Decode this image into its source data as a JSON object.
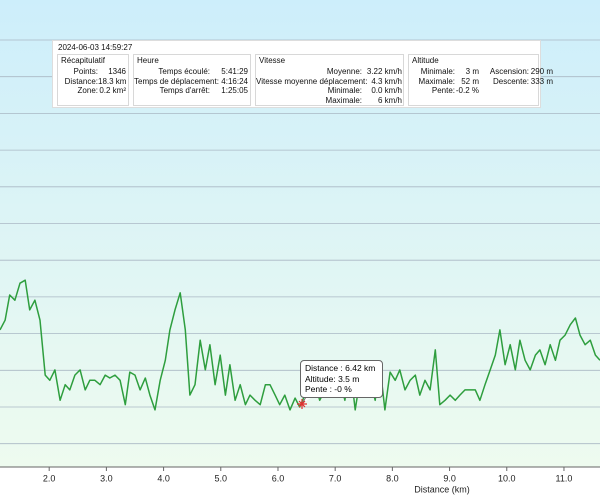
{
  "summary": {
    "timestamp": "2024-06-03 14:59:27",
    "sections": [
      {
        "title": "Récapitulatif",
        "columns": [
          [
            [
              "Points:",
              "1346"
            ],
            [
              "Distance:",
              "18.3 km"
            ],
            [
              "Zone:",
              "0.2 km²"
            ]
          ]
        ]
      },
      {
        "title": "Heure",
        "columns": [
          [
            [
              "Temps écoulé:",
              "5:41:29"
            ],
            [
              "Temps de déplacement:",
              "4:16:24"
            ],
            [
              "Temps d'arrêt:",
              "1:25:05"
            ]
          ]
        ]
      },
      {
        "title": "Vitesse",
        "columns": [
          [
            [
              "Moyenne:",
              "3.22 km/h"
            ],
            [
              "Vitesse moyenne déplacement:",
              "4.3 km/h"
            ],
            [
              "Minimale:",
              "0.0 km/h"
            ],
            [
              "Maximale:",
              "6 km/h"
            ]
          ]
        ]
      },
      {
        "title": "Altitude",
        "columns": [
          [
            [
              "Minimale:",
              "3 m"
            ],
            [
              "Maximale:",
              "52 m"
            ],
            [
              "Pente:",
              "-0.2 %"
            ]
          ],
          [
            [
              "Ascension:",
              "290 m"
            ],
            [
              "Descente:",
              "333 m"
            ]
          ]
        ]
      }
    ]
  },
  "tooltip": {
    "lines": [
      "Distance : 6.42 km",
      "Altitude: 3.5 m",
      "Pente : -0 %"
    ],
    "x": 6.42,
    "y": 3.5
  },
  "chart_data": {
    "type": "line",
    "x_label": "Distance  (km)",
    "x": [
      1.14,
      1.23,
      1.31,
      1.4,
      1.49,
      1.58,
      1.66,
      1.75,
      1.84,
      1.93,
      2.01,
      2.1,
      2.19,
      2.28,
      2.36,
      2.45,
      2.54,
      2.63,
      2.71,
      2.8,
      2.89,
      2.98,
      3.06,
      3.15,
      3.24,
      3.33,
      3.41,
      3.5,
      3.59,
      3.68,
      3.76,
      3.85,
      3.94,
      4.03,
      4.11,
      4.2,
      4.29,
      4.38,
      4.46,
      4.55,
      4.64,
      4.73,
      4.81,
      4.9,
      4.99,
      5.08,
      5.16,
      5.25,
      5.34,
      5.43,
      5.51,
      5.6,
      5.69,
      5.78,
      5.86,
      5.95,
      6.03,
      6.12,
      6.21,
      6.3,
      6.38,
      6.47,
      6.56,
      6.65,
      6.73,
      6.82,
      6.91,
      7.0,
      7.08,
      7.17,
      7.26,
      7.35,
      7.43,
      7.52,
      7.61,
      7.7,
      7.78,
      7.87,
      7.96,
      8.05,
      8.13,
      8.22,
      8.31,
      8.4,
      8.48,
      8.57,
      8.66,
      8.75,
      8.83,
      8.92,
      9.01,
      9.1,
      9.18,
      9.27,
      9.36,
      9.45,
      9.53,
      9.62,
      9.71,
      9.8,
      9.88,
      9.97,
      10.06,
      10.15,
      10.23,
      10.32,
      10.41,
      10.5,
      10.58,
      10.67,
      10.76,
      10.85,
      10.93,
      11.02,
      11.11,
      11.2,
      11.28,
      11.37,
      11.46,
      11.55,
      11.63
    ],
    "series": [
      {
        "color": "#2e9e3e",
        "values": [
          13.5,
          14.8,
          18.2,
          17.5,
          19.8,
          20.2,
          16.2,
          17.5,
          14.8,
          7.4,
          6.7,
          8.1,
          4.0,
          6.1,
          5.4,
          7.4,
          8.1,
          5.4,
          6.7,
          6.7,
          6.1,
          7.4,
          7.0,
          7.4,
          6.7,
          3.4,
          7.8,
          7.4,
          5.4,
          7.0,
          4.7,
          2.7,
          6.7,
          9.4,
          13.5,
          16.2,
          18.5,
          13.5,
          4.7,
          6.1,
          12.1,
          8.1,
          11.5,
          6.1,
          10.1,
          4.7,
          8.8,
          4.0,
          6.1,
          3.4,
          4.7,
          4.0,
          3.4,
          6.1,
          6.1,
          4.7,
          3.4,
          4.7,
          2.7,
          4.3,
          3.1,
          4.7,
          4.7,
          6.1,
          4.0,
          5.4,
          8.1,
          4.7,
          6.7,
          4.0,
          8.8,
          2.7,
          6.7,
          4.7,
          6.7,
          4.0,
          8.8,
          2.7,
          7.8,
          6.7,
          8.1,
          5.4,
          6.7,
          7.4,
          4.7,
          6.7,
          5.4,
          10.8,
          3.4,
          4.0,
          4.7,
          4.0,
          4.7,
          5.4,
          5.4,
          5.4,
          4.0,
          6.1,
          8.1,
          10.1,
          13.5,
          8.8,
          11.5,
          8.1,
          12.1,
          9.4,
          8.1,
          10.1,
          10.8,
          8.8,
          11.5,
          9.4,
          12.1,
          12.8,
          14.2,
          15.1,
          12.8,
          11.5,
          12.1,
          10.1,
          9.4
        ]
      }
    ],
    "xlim": [
      1.14,
      11.63
    ],
    "ylim": [
      -5,
      58
    ],
    "xticks": [
      {
        "value": 2,
        "label": "2.0"
      },
      {
        "value": 3,
        "label": "3.0"
      },
      {
        "value": 4,
        "label": "4.0"
      },
      {
        "value": 5,
        "label": "5.0"
      },
      {
        "value": 6,
        "label": "6.0"
      },
      {
        "value": 7,
        "label": "7.0"
      },
      {
        "value": 8,
        "label": "8.0"
      },
      {
        "value": 9,
        "label": "9.0"
      },
      {
        "value": 10,
        "label": "10.0"
      },
      {
        "value": 11,
        "label": "11.0"
      }
    ]
  }
}
